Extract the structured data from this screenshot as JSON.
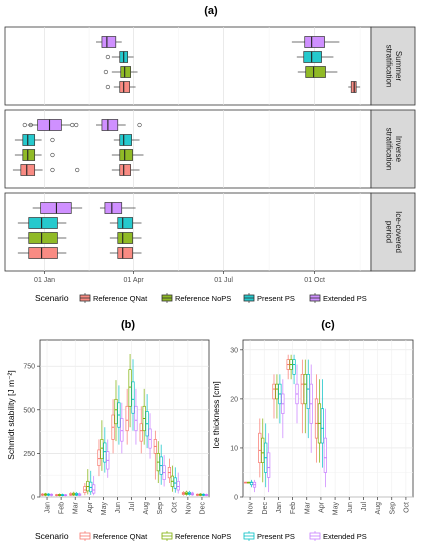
{
  "figure": {
    "panel_labels": [
      "(a)",
      "(b)",
      "(c)"
    ]
  },
  "legend_top": {
    "title": "Scenario",
    "items": [
      {
        "label": "Reference QNat",
        "color": "#F8766D"
      },
      {
        "label": "Reference NoPS",
        "color": "#7CAE00"
      },
      {
        "label": "Present PS",
        "color": "#00BFC4"
      },
      {
        "label": "Extended PS",
        "color": "#C77CFF"
      }
    ]
  },
  "legend_bottom": {
    "title": "Scenario",
    "items": [
      {
        "label": "Reference QNat",
        "color": "#F8766D"
      },
      {
        "label": "Reference NoPS",
        "color": "#7CAE00"
      },
      {
        "label": "Present PS",
        "color": "#00BFC4"
      },
      {
        "label": "Extended PS",
        "color": "#C77CFF"
      }
    ]
  },
  "chart_data": [
    {
      "id": "a",
      "type": "boxplot",
      "orientation": "horizontal",
      "title": "(a)",
      "x_ticks": [
        "01 Jan",
        "01 Apr",
        "01 Jul",
        "01 Oct"
      ],
      "x_tick_days": [
        0,
        90,
        181,
        273
      ],
      "xlim_days": [
        -40,
        330
      ],
      "facets": [
        {
          "label": "Summer stratification",
          "label_lines": [
            "Summer",
            "stratification"
          ],
          "groups": [
            {
              "scenario": "Extended PS",
              "series": [
                {
                  "min": 52,
                  "q1": 58,
                  "med": 63,
                  "q3": 72,
                  "max": 78,
                  "outliers": []
                },
                {
                  "min": 250,
                  "q1": 263,
                  "med": 270,
                  "q3": 283,
                  "max": 298,
                  "outliers": []
                }
              ]
            },
            {
              "scenario": "Present PS",
              "series": [
                {
                  "min": 68,
                  "q1": 76,
                  "med": 80,
                  "q3": 84,
                  "max": 90,
                  "outliers": [
                    64
                  ]
                },
                {
                  "min": 255,
                  "q1": 262,
                  "med": 270,
                  "q3": 280,
                  "max": 292,
                  "outliers": []
                }
              ]
            },
            {
              "scenario": "Reference NoPS",
              "series": [
                {
                  "min": 68,
                  "q1": 77,
                  "med": 81,
                  "q3": 87,
                  "max": 94,
                  "outliers": [
                    62
                  ]
                },
                {
                  "min": 256,
                  "q1": 264,
                  "med": 272,
                  "q3": 284,
                  "max": 296,
                  "outliers": []
                }
              ]
            },
            {
              "scenario": "Reference QNat",
              "series": [
                {
                  "min": 70,
                  "q1": 76,
                  "med": 80,
                  "q3": 86,
                  "max": 92,
                  "outliers": [
                    64
                  ]
                },
                {
                  "min": 307,
                  "q1": 310,
                  "med": 313,
                  "q3": 315,
                  "max": 319,
                  "outliers": []
                }
              ]
            }
          ]
        },
        {
          "label": "Inverse stratification",
          "label_lines": [
            "Inverse",
            "stratification"
          ],
          "groups": [
            {
              "scenario": "Extended PS",
              "series": [
                {
                  "min": -17,
                  "q1": -7,
                  "med": 5,
                  "q3": 17,
                  "max": 26,
                  "outliers": [
                    -20,
                    -14,
                    28,
                    32
                  ]
                },
                {
                  "min": 52,
                  "q1": 58,
                  "med": 64,
                  "q3": 74,
                  "max": 82,
                  "outliers": [
                    96
                  ]
                }
              ]
            },
            {
              "scenario": "Present PS",
              "series": [
                {
                  "min": -30,
                  "q1": -22,
                  "med": -17,
                  "q3": -10,
                  "max": -3,
                  "outliers": [
                    8
                  ]
                },
                {
                  "min": 70,
                  "q1": 76,
                  "med": 80,
                  "q3": 88,
                  "max": 96,
                  "outliers": []
                }
              ]
            },
            {
              "scenario": "Reference NoPS",
              "series": [
                {
                  "min": -30,
                  "q1": -22,
                  "med": -17,
                  "q3": -10,
                  "max": -3,
                  "outliers": [
                    8
                  ]
                },
                {
                  "min": 68,
                  "q1": 76,
                  "med": 81,
                  "q3": 89,
                  "max": 100,
                  "outliers": []
                }
              ]
            },
            {
              "scenario": "Reference QNat",
              "series": [
                {
                  "min": -32,
                  "q1": -24,
                  "med": -18,
                  "q3": -10,
                  "max": -2,
                  "outliers": [
                    8,
                    33
                  ]
                },
                {
                  "min": 68,
                  "q1": 76,
                  "med": 80,
                  "q3": 87,
                  "max": 96,
                  "outliers": []
                }
              ]
            }
          ]
        },
        {
          "label": "Ice-covered period",
          "label_lines": [
            "Ice-covered",
            "period"
          ],
          "groups": [
            {
              "scenario": "Extended PS",
              "series": [
                {
                  "min": -12,
                  "q1": -4,
                  "med": 12,
                  "q3": 27,
                  "max": 38,
                  "outliers": []
                },
                {
                  "min": 56,
                  "q1": 61,
                  "med": 68,
                  "q3": 78,
                  "max": 92,
                  "outliers": []
                }
              ]
            },
            {
              "scenario": "Present PS",
              "series": [
                {
                  "min": -27,
                  "q1": -16,
                  "med": -3,
                  "q3": 13,
                  "max": 22,
                  "outliers": []
                },
                {
                  "min": 66,
                  "q1": 74,
                  "med": 79,
                  "q3": 89,
                  "max": 98,
                  "outliers": []
                }
              ]
            },
            {
              "scenario": "Reference NoPS",
              "series": [
                {
                  "min": -27,
                  "q1": -16,
                  "med": -3,
                  "q3": 13,
                  "max": 22,
                  "outliers": []
                },
                {
                  "min": 66,
                  "q1": 74,
                  "med": 79,
                  "q3": 89,
                  "max": 98,
                  "outliers": []
                }
              ]
            },
            {
              "scenario": "Reference QNat",
              "series": [
                {
                  "min": -27,
                  "q1": -16,
                  "med": -3,
                  "q3": 13,
                  "max": 22,
                  "outliers": []
                },
                {
                  "min": 66,
                  "q1": 74,
                  "med": 79,
                  "q3": 89,
                  "max": 98,
                  "outliers": []
                }
              ]
            }
          ]
        }
      ]
    },
    {
      "id": "b",
      "type": "boxplot",
      "orientation": "vertical",
      "title": "(b)",
      "ylabel": "Schmidt stability [J m⁻²]",
      "ylim": [
        0,
        900
      ],
      "y_ticks": [
        0,
        250,
        500,
        750
      ],
      "categories": [
        "Jan",
        "Feb",
        "Mar",
        "Apr",
        "May",
        "Jun",
        "Jul",
        "Aug",
        "Sep",
        "Oct",
        "Nov",
        "Dec"
      ],
      "series": [
        {
          "name": "Reference QNat",
          "boxes": [
            [
              5,
              10,
              13,
              17,
              22
            ],
            [
              4,
              8,
              11,
              14,
              18
            ],
            [
              6,
              10,
              14,
              20,
              28
            ],
            [
              10,
              25,
              40,
              60,
              80
            ],
            [
              120,
              180,
              220,
              270,
              330
            ],
            [
              250,
              330,
              400,
              470,
              560
            ],
            [
              300,
              380,
              440,
              520,
              620
            ],
            [
              250,
              320,
              380,
              420,
              520
            ],
            [
              100,
              250,
              290,
              330,
              380
            ],
            [
              80,
              110,
              140,
              170,
              220
            ],
            [
              8,
              14,
              20,
              26,
              34
            ],
            [
              5,
              9,
              12,
              16,
              20
            ]
          ]
        },
        {
          "name": "Reference NoPS",
          "boxes": [
            [
              5,
              10,
              14,
              18,
              24
            ],
            [
              4,
              8,
              11,
              15,
              20
            ],
            [
              6,
              11,
              16,
              22,
              30
            ],
            [
              15,
              35,
              60,
              90,
              160
            ],
            [
              150,
              220,
              280,
              330,
              440
            ],
            [
              320,
              420,
              500,
              560,
              670
            ],
            [
              400,
              520,
              630,
              730,
              820
            ],
            [
              300,
              380,
              450,
              520,
              620
            ],
            [
              80,
              150,
              200,
              250,
              320
            ],
            [
              30,
              60,
              90,
              120,
              180
            ],
            [
              8,
              15,
              20,
              28,
              36
            ],
            [
              5,
              9,
              13,
              17,
              22
            ]
          ]
        },
        {
          "name": "Present PS",
          "boxes": [
            [
              5,
              10,
              13,
              17,
              22
            ],
            [
              4,
              8,
              11,
              14,
              19
            ],
            [
              6,
              10,
              15,
              21,
              29
            ],
            [
              12,
              30,
              55,
              85,
              150
            ],
            [
              140,
              200,
              260,
              310,
              400
            ],
            [
              300,
              400,
              470,
              540,
              640
            ],
            [
              380,
              480,
              560,
              660,
              790
            ],
            [
              280,
              350,
              420,
              490,
              590
            ],
            [
              70,
              130,
              180,
              230,
              300
            ],
            [
              25,
              50,
              80,
              110,
              170
            ],
            [
              8,
              14,
              20,
              27,
              35
            ],
            [
              5,
              9,
              12,
              16,
              21
            ]
          ]
        },
        {
          "name": "Extended PS",
          "boxes": [
            [
              4,
              9,
              12,
              16,
              21
            ],
            [
              4,
              8,
              10,
              13,
              17
            ],
            [
              5,
              9,
              13,
              18,
              25
            ],
            [
              10,
              22,
              40,
              70,
              120
            ],
            [
              110,
              160,
              210,
              260,
              330
            ],
            [
              250,
              320,
              380,
              450,
              540
            ],
            [
              300,
              380,
              440,
              520,
              620
            ],
            [
              220,
              280,
              330,
              390,
              480
            ],
            [
              60,
              100,
              140,
              180,
              240
            ],
            [
              20,
              40,
              60,
              90,
              140
            ],
            [
              7,
              12,
              17,
              23,
              30
            ],
            [
              5,
              8,
              11,
              15,
              19
            ]
          ]
        }
      ]
    },
    {
      "id": "c",
      "type": "boxplot",
      "orientation": "vertical",
      "title": "(c)",
      "ylabel": "Ice thickness [cm]",
      "ylim": [
        0,
        32
      ],
      "y_ticks": [
        0,
        10,
        20,
        30
      ],
      "categories": [
        "Nov",
        "Dec",
        "Jan",
        "Feb",
        "Mar",
        "Apr",
        "May",
        "Jun",
        "Jul",
        "Aug",
        "Sep",
        "Oct"
      ],
      "series": [
        {
          "name": "Reference QNat",
          "boxes": [
            [
              3,
              3,
              3,
              3,
              3
            ],
            [
              4,
              7,
              9.5,
              13,
              16
            ],
            [
              16,
              20,
              22,
              23,
              25
            ],
            [
              24,
              26,
              27,
              28,
              29
            ],
            [
              13,
              19,
              23,
              25,
              28
            ],
            [
              7,
              12,
              15,
              20,
              25
            ],
            null,
            null,
            null,
            null,
            null,
            null
          ]
        },
        {
          "name": "Reference NoPS",
          "boxes": [
            [
              3,
              3,
              3,
              3,
              3
            ],
            [
              3,
              7,
              9,
              12,
              16
            ],
            [
              16,
              20,
              22,
              23,
              25
            ],
            [
              24,
              26,
              27,
              28,
              29
            ],
            [
              13,
              19,
              23,
              25,
              28
            ],
            [
              7,
              11,
              15,
              19,
              24
            ],
            null,
            null,
            null,
            null,
            null,
            null
          ]
        },
        {
          "name": "Present PS",
          "boxes": [
            [
              2,
              2.5,
              3,
              3,
              3.5
            ],
            [
              2,
              5,
              8,
              11,
              15
            ],
            [
              15,
              19,
              21,
              23,
              25
            ],
            [
              23,
              25,
              27,
              28,
              29
            ],
            [
              12,
              18,
              22,
              25,
              28
            ],
            [
              6,
              11,
              14,
              18,
              24
            ],
            null,
            null,
            null,
            null,
            null,
            null
          ]
        },
        {
          "name": "Extended PS",
          "boxes": [
            [
              1,
              2,
              2.5,
              3,
              3.5
            ],
            [
              1,
              4,
              6,
              9,
              13
            ],
            [
              12,
              17,
              19,
              21,
              24
            ],
            [
              15,
              19,
              21,
              23,
              27
            ],
            [
              9,
              15,
              19,
              23,
              27
            ],
            [
              2,
              5,
              8,
              12,
              18
            ],
            null,
            null,
            null,
            null,
            null,
            null
          ]
        }
      ]
    }
  ]
}
